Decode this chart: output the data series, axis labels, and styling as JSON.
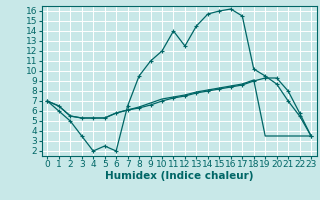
{
  "xlabel": "Humidex (Indice chaleur)",
  "background_color": "#c8e8e8",
  "grid_color": "#ffffff",
  "line_color": "#006666",
  "xlim": [
    -0.5,
    23.5
  ],
  "ylim": [
    1.5,
    16.5
  ],
  "xticks": [
    0,
    1,
    2,
    3,
    4,
    5,
    6,
    7,
    8,
    9,
    10,
    11,
    12,
    13,
    14,
    15,
    16,
    17,
    18,
    19,
    20,
    21,
    22,
    23
  ],
  "yticks": [
    2,
    3,
    4,
    5,
    6,
    7,
    8,
    9,
    10,
    11,
    12,
    13,
    14,
    15,
    16
  ],
  "line1_x": [
    0,
    1,
    2,
    3,
    4,
    5,
    6,
    7,
    8,
    9,
    10,
    11,
    12,
    13,
    14,
    15,
    16,
    17,
    18,
    19,
    20,
    21,
    22,
    23
  ],
  "line1_y": [
    7,
    6,
    5,
    3.5,
    2,
    2.5,
    2,
    6.5,
    9.5,
    11,
    12,
    14,
    12.5,
    14.5,
    15.7,
    16,
    16.2,
    15.5,
    10.2,
    9.5,
    8.7,
    7,
    5.5,
    3.5
  ],
  "line2_x": [
    0,
    1,
    2,
    3,
    4,
    5,
    6,
    7,
    8,
    9,
    10,
    11,
    12,
    13,
    14,
    15,
    16,
    17,
    18,
    19,
    20,
    21,
    22,
    23
  ],
  "line2_y": [
    7,
    6.5,
    5.5,
    5.3,
    5.3,
    5.3,
    5.8,
    6.1,
    6.3,
    6.6,
    7.0,
    7.3,
    7.5,
    7.8,
    8.0,
    8.2,
    8.4,
    8.6,
    9.0,
    9.3,
    9.3,
    8.0,
    5.8,
    3.5
  ],
  "line3_x": [
    0,
    1,
    2,
    3,
    4,
    5,
    6,
    7,
    8,
    9,
    10,
    11,
    12,
    13,
    14,
    15,
    16,
    17,
    18,
    19,
    20,
    21,
    22,
    23
  ],
  "line3_y": [
    7,
    6.5,
    5.5,
    5.3,
    5.3,
    5.3,
    5.8,
    6.1,
    6.4,
    6.8,
    7.2,
    7.4,
    7.6,
    7.9,
    8.1,
    8.3,
    8.5,
    8.7,
    9.1,
    3.5,
    3.5,
    3.5,
    3.5,
    3.5
  ],
  "font_size": 6.5
}
